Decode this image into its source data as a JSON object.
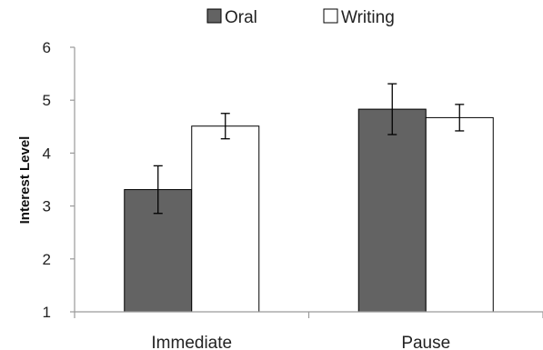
{
  "colors": {
    "oral": "#636363",
    "writing": "#ffffff",
    "stroke": "#000000",
    "axis": "#9a9a9a"
  },
  "chart_data": {
    "type": "bar",
    "title": "",
    "xlabel": "",
    "ylabel": "Interest Level",
    "categories": [
      "Immediate",
      "Pause"
    ],
    "ylim": [
      1,
      6
    ],
    "yticks": [
      1,
      2,
      3,
      4,
      5,
      6
    ],
    "grid": false,
    "legend_position": "top",
    "series": [
      {
        "name": "Oral",
        "values": [
          3.31,
          4.83
        ],
        "error": [
          0.45,
          0.48
        ]
      },
      {
        "name": "Writing",
        "values": [
          4.51,
          4.67
        ],
        "error": [
          0.24,
          0.25
        ]
      }
    ]
  }
}
